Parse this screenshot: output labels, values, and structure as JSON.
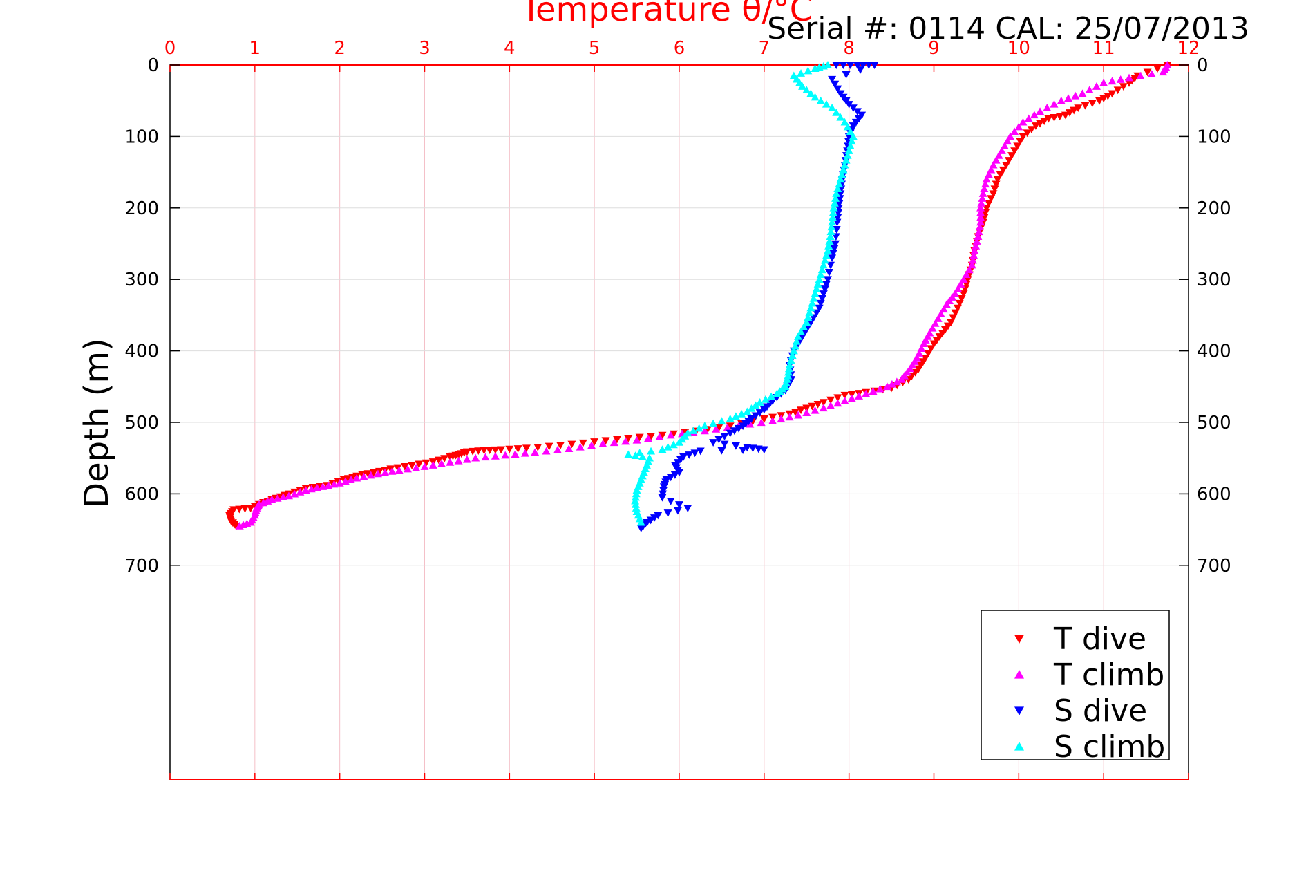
{
  "chart_data": {
    "type": "scatter",
    "title": "Temperature θ/°C",
    "subtitle": "Serial #: 0114  CAL: 25/07/2013",
    "xlabel": "Temperature θ/°C",
    "ylabel": "Depth (m)",
    "xlim": [
      0,
      12
    ],
    "ylim": [
      1000,
      0
    ],
    "x_ticks": [
      "0",
      "1",
      "2",
      "3",
      "4",
      "5",
      "6",
      "7",
      "8",
      "9",
      "10",
      "11",
      "12"
    ],
    "y_ticks": [
      "0",
      "100",
      "200",
      "300",
      "400",
      "500",
      "600",
      "700"
    ],
    "grid": true,
    "legend_position": "bottom-right",
    "colors": {
      "axis": "#ff0000",
      "grid": "#f4c0c8",
      "hgrid": "#dddddd"
    },
    "series": [
      {
        "name": "T dive",
        "marker": "triangle-down",
        "color": "#ff0000",
        "points": [
          [
            11.75,
            0
          ],
          [
            11.4,
            15
          ],
          [
            11.3,
            25
          ],
          [
            11.1,
            40
          ],
          [
            10.95,
            50
          ],
          [
            10.7,
            60
          ],
          [
            10.55,
            70
          ],
          [
            10.35,
            75
          ],
          [
            10.2,
            85
          ],
          [
            10.05,
            100
          ],
          [
            9.95,
            120
          ],
          [
            9.85,
            140
          ],
          [
            9.75,
            160
          ],
          [
            9.7,
            180
          ],
          [
            9.62,
            200
          ],
          [
            9.58,
            220
          ],
          [
            9.52,
            240
          ],
          [
            9.48,
            260
          ],
          [
            9.45,
            280
          ],
          [
            9.4,
            300
          ],
          [
            9.35,
            320
          ],
          [
            9.28,
            340
          ],
          [
            9.2,
            360
          ],
          [
            9.1,
            375
          ],
          [
            9.0,
            390
          ],
          [
            8.9,
            410
          ],
          [
            8.82,
            425
          ],
          [
            8.7,
            440
          ],
          [
            8.5,
            452
          ],
          [
            8.2,
            458
          ],
          [
            7.95,
            462
          ],
          [
            7.7,
            472
          ],
          [
            7.5,
            480
          ],
          [
            7.3,
            488
          ],
          [
            7.0,
            495
          ],
          [
            6.6,
            505
          ],
          [
            6.2,
            512
          ],
          [
            5.8,
            518
          ],
          [
            5.4,
            522
          ],
          [
            5.0,
            527
          ],
          [
            4.6,
            532
          ],
          [
            4.2,
            536
          ],
          [
            3.9,
            538
          ],
          [
            3.7,
            539
          ],
          [
            3.5,
            541
          ],
          [
            3.4,
            545
          ],
          [
            3.3,
            548
          ],
          [
            3.1,
            555
          ],
          [
            2.85,
            560
          ],
          [
            2.6,
            565
          ],
          [
            2.4,
            570
          ],
          [
            2.2,
            575
          ],
          [
            2.05,
            580
          ],
          [
            1.85,
            588
          ],
          [
            1.6,
            592
          ],
          [
            1.4,
            600
          ],
          [
            1.25,
            606
          ],
          [
            1.1,
            612
          ],
          [
            0.95,
            620
          ],
          [
            0.75,
            622
          ],
          [
            0.7,
            630
          ],
          [
            0.72,
            638
          ],
          [
            0.78,
            645
          ]
        ]
      },
      {
        "name": "T climb",
        "marker": "triangle-up",
        "color": "#ff00ff",
        "points": [
          [
            0.82,
            645
          ],
          [
            0.95,
            640
          ],
          [
            1.0,
            630
          ],
          [
            1.02,
            620
          ],
          [
            1.05,
            615
          ],
          [
            1.2,
            608
          ],
          [
            1.4,
            603
          ],
          [
            1.6,
            595
          ],
          [
            1.8,
            590
          ],
          [
            2.0,
            585
          ],
          [
            2.2,
            578
          ],
          [
            2.45,
            572
          ],
          [
            2.7,
            567
          ],
          [
            3.0,
            562
          ],
          [
            3.3,
            556
          ],
          [
            3.6,
            550
          ],
          [
            3.95,
            546
          ],
          [
            4.3,
            542
          ],
          [
            4.7,
            537
          ],
          [
            5.1,
            530
          ],
          [
            5.5,
            525
          ],
          [
            5.9,
            518
          ],
          [
            6.3,
            512
          ],
          [
            6.7,
            505
          ],
          [
            7.1,
            498
          ],
          [
            7.4,
            490
          ],
          [
            7.7,
            480
          ],
          [
            7.95,
            470
          ],
          [
            8.2,
            460
          ],
          [
            8.45,
            450
          ],
          [
            8.62,
            440
          ],
          [
            8.72,
            425
          ],
          [
            8.8,
            410
          ],
          [
            8.88,
            390
          ],
          [
            8.95,
            375
          ],
          [
            9.05,
            355
          ],
          [
            9.15,
            335
          ],
          [
            9.25,
            320
          ],
          [
            9.35,
            300
          ],
          [
            9.45,
            280
          ],
          [
            9.48,
            260
          ],
          [
            9.52,
            240
          ],
          [
            9.55,
            220
          ],
          [
            9.55,
            200
          ],
          [
            9.58,
            180
          ],
          [
            9.62,
            160
          ],
          [
            9.7,
            140
          ],
          [
            9.8,
            120
          ],
          [
            9.9,
            100
          ],
          [
            10.05,
            80
          ],
          [
            10.25,
            65
          ],
          [
            10.5,
            50
          ],
          [
            10.75,
            40
          ],
          [
            11.0,
            25
          ],
          [
            11.3,
            18
          ],
          [
            11.7,
            10
          ],
          [
            11.75,
            0
          ]
        ]
      },
      {
        "name": "S dive",
        "marker": "triangle-down",
        "color": "#0000ff",
        "points": [
          [
            7.85,
            0
          ],
          [
            8.1,
            0
          ],
          [
            8.3,
            0
          ],
          [
            7.8,
            20
          ],
          [
            7.9,
            40
          ],
          [
            8.0,
            55
          ],
          [
            8.15,
            70
          ],
          [
            8.05,
            85
          ],
          [
            8.0,
            100
          ],
          [
            7.98,
            120
          ],
          [
            7.95,
            140
          ],
          [
            7.92,
            160
          ],
          [
            7.9,
            180
          ],
          [
            7.88,
            200
          ],
          [
            7.86,
            220
          ],
          [
            7.84,
            250
          ],
          [
            7.8,
            270
          ],
          [
            7.75,
            300
          ],
          [
            7.7,
            320
          ],
          [
            7.65,
            340
          ],
          [
            7.55,
            360
          ],
          [
            7.45,
            380
          ],
          [
            7.35,
            400
          ],
          [
            7.3,
            420
          ],
          [
            7.32,
            440
          ],
          [
            7.25,
            455
          ],
          [
            7.1,
            470
          ],
          [
            7.0,
            482
          ],
          [
            6.85,
            495
          ],
          [
            6.75,
            505
          ],
          [
            6.6,
            515
          ],
          [
            6.4,
            528
          ],
          [
            6.8,
            535
          ],
          [
            7.0,
            538
          ],
          [
            6.25,
            540
          ],
          [
            6.05,
            548
          ],
          [
            5.95,
            560
          ],
          [
            6.0,
            570
          ],
          [
            5.85,
            580
          ],
          [
            5.82,
            590
          ],
          [
            5.8,
            605
          ],
          [
            6.1,
            620
          ],
          [
            5.75,
            630
          ],
          [
            5.62,
            640
          ],
          [
            5.55,
            648
          ]
        ]
      },
      {
        "name": "S climb",
        "marker": "triangle-up",
        "color": "#00ffff",
        "points": [
          [
            5.55,
            640
          ],
          [
            5.5,
            625
          ],
          [
            5.48,
            610
          ],
          [
            5.5,
            595
          ],
          [
            5.55,
            580
          ],
          [
            5.6,
            565
          ],
          [
            5.65,
            550
          ],
          [
            5.4,
            545
          ],
          [
            5.8,
            538
          ],
          [
            6.0,
            528
          ],
          [
            6.1,
            515
          ],
          [
            6.3,
            505
          ],
          [
            6.6,
            495
          ],
          [
            6.8,
            485
          ],
          [
            6.95,
            472
          ],
          [
            7.15,
            460
          ],
          [
            7.25,
            450
          ],
          [
            7.28,
            435
          ],
          [
            7.3,
            420
          ],
          [
            7.35,
            400
          ],
          [
            7.4,
            380
          ],
          [
            7.5,
            360
          ],
          [
            7.55,
            340
          ],
          [
            7.6,
            320
          ],
          [
            7.65,
            300
          ],
          [
            7.7,
            280
          ],
          [
            7.75,
            260
          ],
          [
            7.78,
            240
          ],
          [
            7.8,
            220
          ],
          [
            7.82,
            200
          ],
          [
            7.85,
            180
          ],
          [
            7.9,
            160
          ],
          [
            7.95,
            140
          ],
          [
            8.0,
            120
          ],
          [
            8.05,
            100
          ],
          [
            7.95,
            80
          ],
          [
            7.8,
            60
          ],
          [
            7.6,
            45
          ],
          [
            7.45,
            30
          ],
          [
            7.35,
            15
          ],
          [
            7.6,
            5
          ],
          [
            7.75,
            0
          ]
        ]
      }
    ]
  }
}
